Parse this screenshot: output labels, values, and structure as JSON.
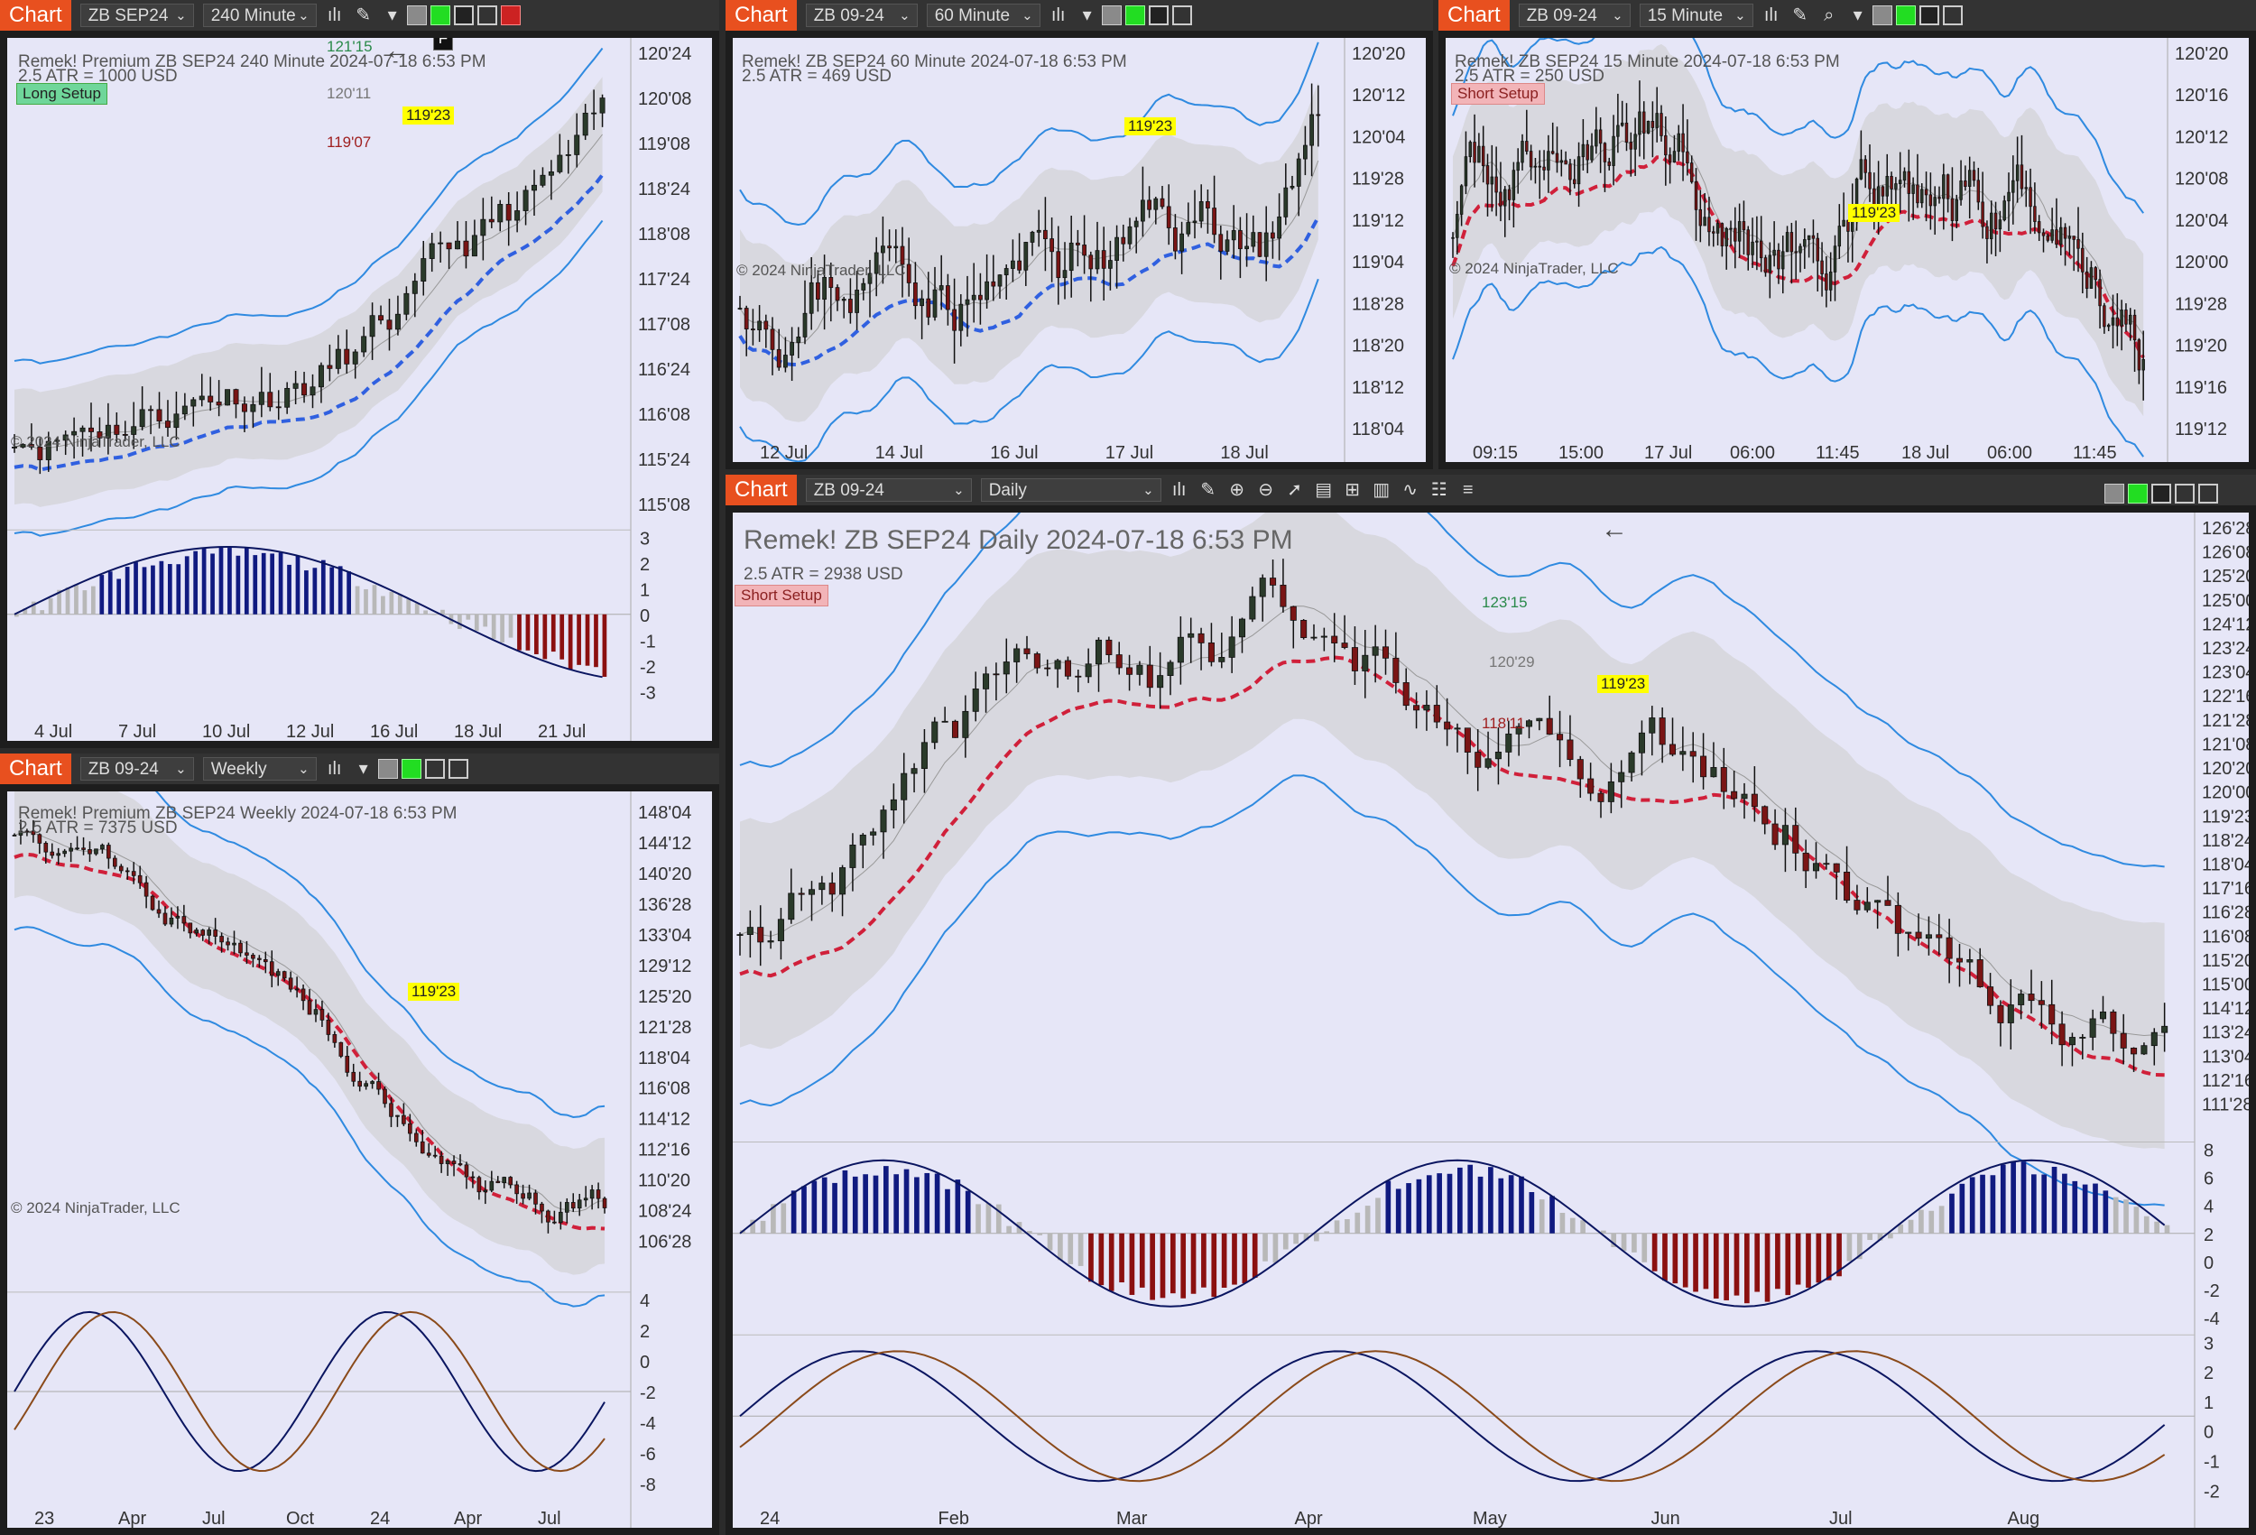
{
  "ui": {
    "chart_tab": "Chart",
    "weekly_chart_tab": "Chart",
    "last_price": "119'23",
    "copyright": "© 2024 NinjaTrader, LLC"
  },
  "panels": {
    "p240": {
      "instrument": "ZB SEP24",
      "interval": "240 Minute",
      "title": "Remek!  Premium  ZB SEP24  240 Minute  2024-07-18 6:53 PM",
      "atr": "2.5 ATR = 1000 USD",
      "setup": "Long Setup",
      "f_button": "F",
      "target": "121'15",
      "mid": "120'11",
      "stop": "119'07",
      "axis": [
        "120'24",
        "120'08",
        "119'08",
        "118'24",
        "118'08",
        "117'24",
        "117'08",
        "116'24",
        "116'08",
        "115'24",
        "115'08"
      ],
      "osc_axis": [
        "3",
        "2",
        "1",
        "0",
        "-1",
        "-2",
        "-3"
      ],
      "xaxis": [
        "4 Jul",
        "7 Jul",
        "10 Jul",
        "12 Jul",
        "16 Jul",
        "18 Jul",
        "21 Jul"
      ]
    },
    "p60": {
      "instrument": "ZB 09-24",
      "interval": "60 Minute",
      "title": "Remek!  ZB SEP24  60 Minute  2024-07-18 6:53 PM",
      "atr": "2.5 ATR = 469 USD",
      "axis": [
        "120'20",
        "120'12",
        "120'04",
        "119'28",
        "119'12",
        "119'04",
        "118'28",
        "118'20",
        "118'12",
        "118'04"
      ],
      "xaxis": [
        "12 Jul",
        "14 Jul",
        "16 Jul",
        "17 Jul",
        "18 Jul"
      ]
    },
    "p15": {
      "instrument": "ZB 09-24",
      "interval": "15 Minute",
      "title": "Remek!  ZB SEP24  15 Minute  2024-07-18 6:53 PM",
      "atr": "2.5 ATR = 250 USD",
      "setup": "Short Setup",
      "axis": [
        "120'20",
        "120'16",
        "120'12",
        "120'08",
        "120'04",
        "120'00",
        "119'28",
        "119'20",
        "119'16",
        "119'12"
      ],
      "xaxis": [
        "09:15",
        "15:00",
        "17 Jul",
        "06:00",
        "11:45",
        "18 Jul",
        "06:00",
        "11:45"
      ]
    },
    "pweekly": {
      "instrument": "ZB 09-24",
      "interval": "Weekly",
      "title": "Remek!  Premium  ZB SEP24  Weekly  2024-07-18 6:53 PM",
      "atr": "2.5 ATR = 7375 USD",
      "axis": [
        "148'04",
        "144'12",
        "140'20",
        "136'28",
        "133'04",
        "129'12",
        "125'20",
        "121'28",
        "118'04",
        "116'08",
        "114'12",
        "112'16",
        "110'20",
        "108'24",
        "106'28"
      ],
      "osc_axis": [
        "4",
        "2",
        "0",
        "-2",
        "-4",
        "-6",
        "-8"
      ],
      "xaxis": [
        "23",
        "Apr",
        "Jul",
        "Oct",
        "24",
        "Apr",
        "Jul"
      ]
    },
    "pdaily": {
      "instrument": "ZB 09-24",
      "interval": "Daily",
      "title": "Remek!  ZB SEP24  Daily  2024-07-18 6:53 PM",
      "atr": "2.5 ATR = 2938 USD",
      "setup": "Short Setup",
      "target": "123'15",
      "mid": "120'29",
      "stop": "118'11",
      "axis": [
        "126'28",
        "126'08",
        "125'20",
        "125'00",
        "124'12",
        "123'24",
        "123'04",
        "122'16",
        "121'28",
        "121'08",
        "120'20",
        "120'00",
        "119'23",
        "118'24",
        "118'04",
        "117'16",
        "116'28",
        "116'08",
        "115'20",
        "115'00",
        "114'12",
        "113'24",
        "113'04",
        "112'16",
        "111'28"
      ],
      "hist_axis": [
        "8",
        "6",
        "4",
        "2",
        "0",
        "-2",
        "-4"
      ],
      "osc_axis": [
        "3",
        "2",
        "1",
        "0",
        "-1",
        "-2"
      ],
      "xaxis": [
        "24",
        "Feb",
        "Mar",
        "Apr",
        "May",
        "Jun",
        "Jul",
        "Aug"
      ]
    }
  }
}
